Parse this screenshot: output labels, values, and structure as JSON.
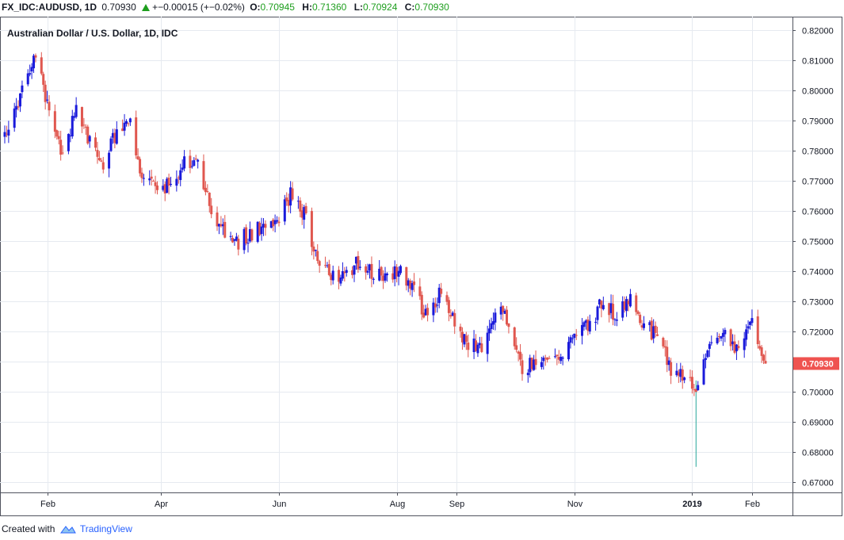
{
  "header": {
    "symbol": "FX_IDC:AUDUSD, 1D",
    "last": "0.70930",
    "change": "+−0.00015 (+−0.02%)",
    "o_label": "O:",
    "o_value": "0.70945",
    "h_label": "H:",
    "h_value": "0.71360",
    "l_label": "L:",
    "l_value": "0.70924",
    "c_label": "C:",
    "c_value": "0.70930"
  },
  "chart_title": "Australian Dollar / U.S. Dollar, 1D, IDC",
  "footer": {
    "created_with": "Created with",
    "brand": "TradingView"
  },
  "colors": {
    "up": "#1a1adb",
    "down": "#e0574f",
    "grid": "#e6eaf0",
    "price_tag": "#ef5350"
  },
  "chart_data": {
    "type": "candlestick",
    "title": "Australian Dollar / U.S. Dollar, 1D, IDC",
    "ylim": [
      0.665,
      0.823
    ],
    "yticks": [
      "0.82000",
      "0.81000",
      "0.80000",
      "0.79000",
      "0.78000",
      "0.77000",
      "0.76000",
      "0.75000",
      "0.74000",
      "0.73000",
      "0.72000",
      "0.71000",
      "0.70000",
      "0.69000",
      "0.68000",
      "0.67000"
    ],
    "xticks": [
      {
        "label": "Feb",
        "date": "2018-02-01"
      },
      {
        "label": "Apr",
        "date": "2018-04-01"
      },
      {
        "label": "Jun",
        "date": "2018-06-01"
      },
      {
        "label": "Aug",
        "date": "2018-08-01"
      },
      {
        "label": "Sep",
        "date": "2018-09-01"
      },
      {
        "label": "Nov",
        "date": "2018-11-01"
      },
      {
        "label": "2019",
        "date": "2019-01-01"
      },
      {
        "label": "Feb",
        "date": "2019-02-01"
      }
    ],
    "date_range": [
      "2018-01-10",
      "2019-02-08"
    ],
    "last_price_label": "0.70930",
    "close_path": [
      {
        "date": "2018-01-10",
        "close": 0.785
      },
      {
        "date": "2018-01-18",
        "close": 0.799
      },
      {
        "date": "2018-01-26",
        "close": 0.811
      },
      {
        "date": "2018-02-02",
        "close": 0.792
      },
      {
        "date": "2018-02-09",
        "close": 0.778
      },
      {
        "date": "2018-02-16",
        "close": 0.793
      },
      {
        "date": "2018-02-23",
        "close": 0.783
      },
      {
        "date": "2018-03-02",
        "close": 0.776
      },
      {
        "date": "2018-03-09",
        "close": 0.786
      },
      {
        "date": "2018-03-16",
        "close": 0.788
      },
      {
        "date": "2018-03-23",
        "close": 0.77
      },
      {
        "date": "2018-03-30",
        "close": 0.768
      },
      {
        "date": "2018-04-06",
        "close": 0.769
      },
      {
        "date": "2018-04-13",
        "close": 0.776
      },
      {
        "date": "2018-04-20",
        "close": 0.778
      },
      {
        "date": "2018-04-27",
        "close": 0.758
      },
      {
        "date": "2018-05-04",
        "close": 0.753
      },
      {
        "date": "2018-05-11",
        "close": 0.75
      },
      {
        "date": "2018-05-18",
        "close": 0.753
      },
      {
        "date": "2018-05-25",
        "close": 0.756
      },
      {
        "date": "2018-06-01",
        "close": 0.758
      },
      {
        "date": "2018-06-08",
        "close": 0.766
      },
      {
        "date": "2018-06-15",
        "close": 0.757
      },
      {
        "date": "2018-06-22",
        "close": 0.742
      },
      {
        "date": "2018-06-29",
        "close": 0.738
      },
      {
        "date": "2018-07-06",
        "close": 0.74
      },
      {
        "date": "2018-07-13",
        "close": 0.743
      },
      {
        "date": "2018-07-20",
        "close": 0.739
      },
      {
        "date": "2018-07-27",
        "close": 0.74
      },
      {
        "date": "2018-08-03",
        "close": 0.74
      },
      {
        "date": "2018-08-10",
        "close": 0.733
      },
      {
        "date": "2018-08-17",
        "close": 0.725
      },
      {
        "date": "2018-08-24",
        "close": 0.733
      },
      {
        "date": "2018-08-31",
        "close": 0.722
      },
      {
        "date": "2018-09-07",
        "close": 0.714
      },
      {
        "date": "2018-09-14",
        "close": 0.716
      },
      {
        "date": "2018-09-21",
        "close": 0.728
      },
      {
        "date": "2018-09-28",
        "close": 0.723
      },
      {
        "date": "2018-10-05",
        "close": 0.708
      },
      {
        "date": "2018-10-12",
        "close": 0.709
      },
      {
        "date": "2018-10-19",
        "close": 0.713
      },
      {
        "date": "2018-10-26",
        "close": 0.709
      },
      {
        "date": "2018-11-02",
        "close": 0.72
      },
      {
        "date": "2018-11-09",
        "close": 0.722
      },
      {
        "date": "2018-11-16",
        "close": 0.73
      },
      {
        "date": "2018-11-23",
        "close": 0.724
      },
      {
        "date": "2018-11-30",
        "close": 0.732
      },
      {
        "date": "2018-12-07",
        "close": 0.722
      },
      {
        "date": "2018-12-14",
        "close": 0.718
      },
      {
        "date": "2018-12-21",
        "close": 0.708
      },
      {
        "date": "2018-12-28",
        "close": 0.704
      },
      {
        "date": "2019-01-03",
        "close": 0.7
      },
      {
        "date": "2019-01-11",
        "close": 0.718
      },
      {
        "date": "2019-01-18",
        "close": 0.718
      },
      {
        "date": "2019-01-25",
        "close": 0.712
      },
      {
        "date": "2019-02-01",
        "close": 0.725
      },
      {
        "date": "2019-02-05",
        "close": 0.715
      },
      {
        "date": "2019-02-08",
        "close": 0.7093
      }
    ],
    "notable_low": {
      "date": "2019-01-03",
      "low": 0.675
    }
  }
}
